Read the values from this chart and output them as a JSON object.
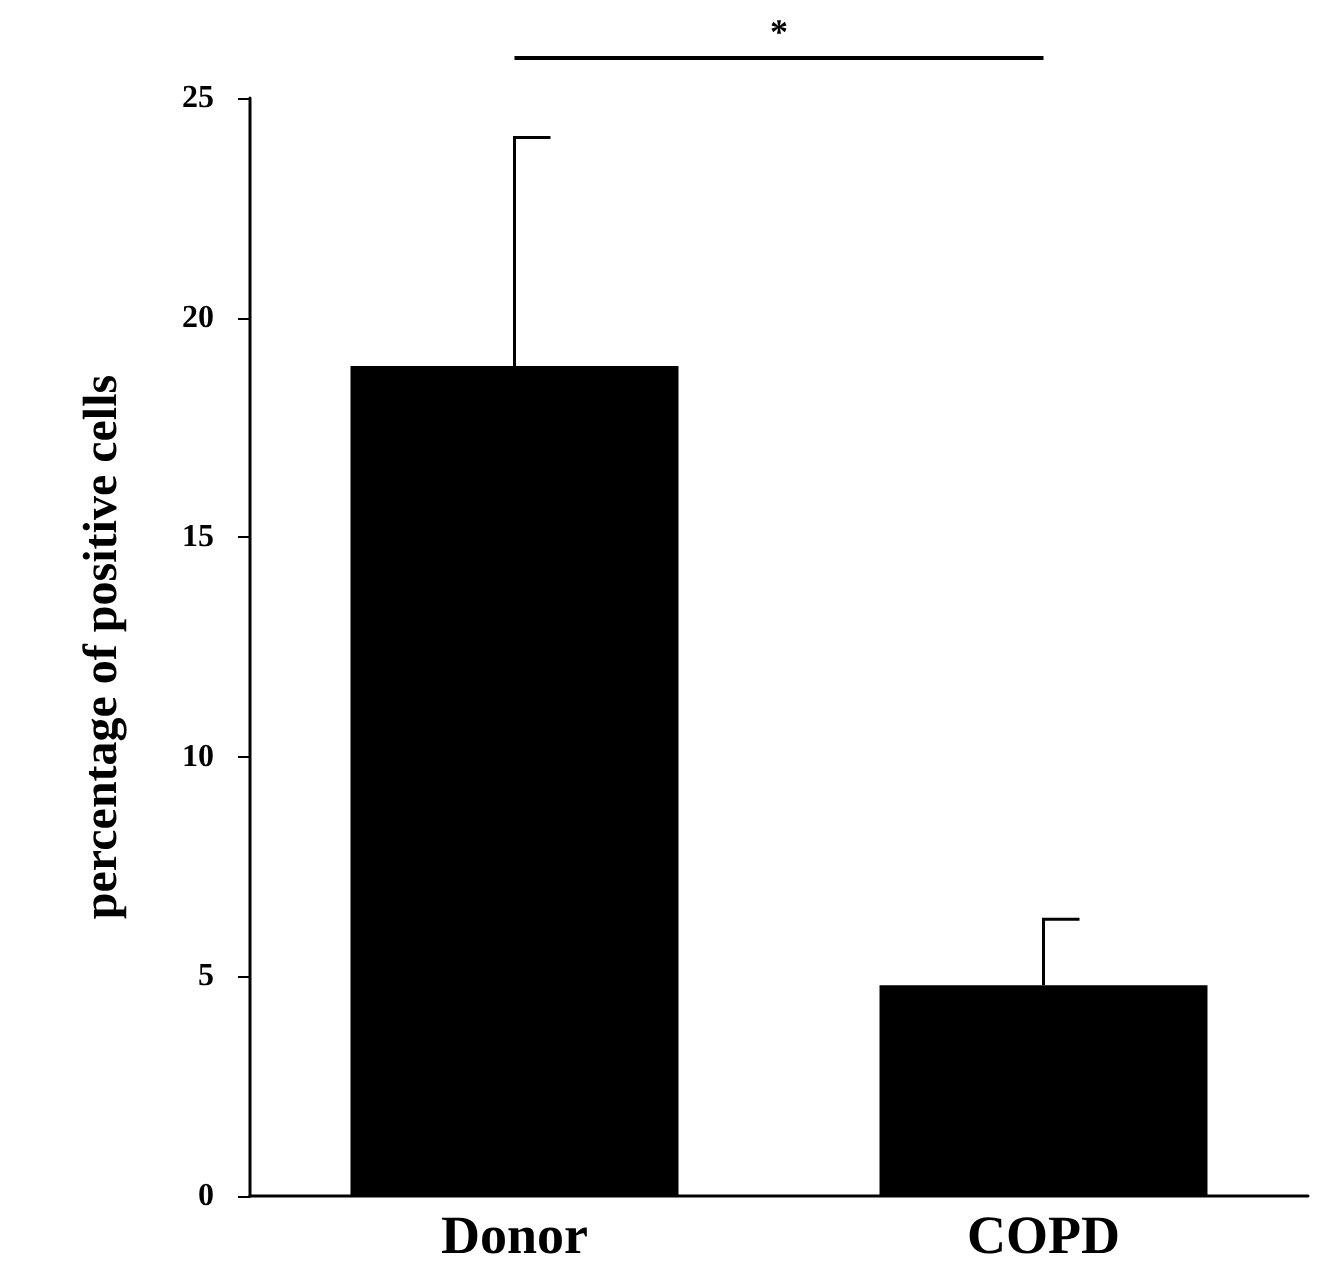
{
  "chart_data": {
    "type": "bar",
    "ylabel": "percentage of positive cells",
    "categories": [
      "Donor",
      "COPD"
    ],
    "values": [
      18.9,
      4.8
    ],
    "errors": [
      5.2,
      1.5
    ],
    "color": "#000000",
    "ylim": [
      0,
      25
    ],
    "yticks": [
      0,
      5,
      10,
      15,
      20,
      25
    ],
    "grid": false,
    "annotations": [
      "*"
    ]
  }
}
